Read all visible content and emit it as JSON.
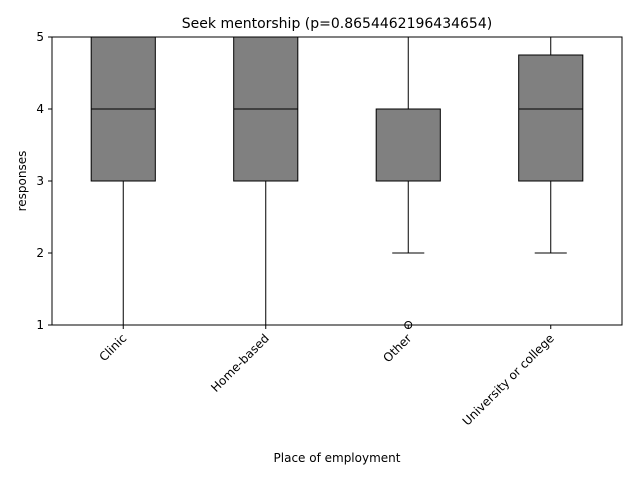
{
  "chart_data": {
    "type": "box",
    "title": "Seek mentorship (p=0.8654462196434654)",
    "xlabel": "Place of employment",
    "ylabel": "responses",
    "ylim": [
      1,
      5
    ],
    "yticks": [
      1,
      2,
      3,
      4,
      5
    ],
    "categories": [
      "Clinic",
      "Home-based",
      "Other",
      "University or college"
    ],
    "boxes": [
      {
        "category": "Clinic",
        "whisker_low": 1,
        "q1": 3,
        "median": 4,
        "q3": 5,
        "whisker_high": 5,
        "outliers": []
      },
      {
        "category": "Home-based",
        "whisker_low": 1,
        "q1": 3,
        "median": 4,
        "q3": 5,
        "whisker_high": 5,
        "outliers": []
      },
      {
        "category": "Other",
        "whisker_low": 2,
        "q1": 3,
        "median": 4,
        "q3": 4,
        "whisker_high": 5,
        "outliers": [
          1
        ]
      },
      {
        "category": "University or college",
        "whisker_low": 2,
        "q1": 3,
        "median": 4,
        "q3": 4.75,
        "whisker_high": 5,
        "outliers": []
      }
    ],
    "colors": {
      "box_fill": "#808080",
      "line": "#000000"
    },
    "grid": false,
    "legend": "none"
  }
}
